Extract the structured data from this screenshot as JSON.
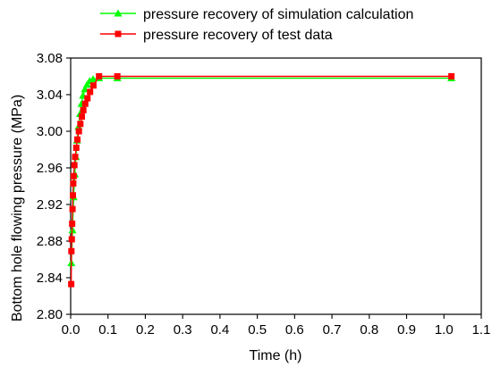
{
  "chart_data": {
    "type": "line",
    "xlabel": "Time (h)",
    "ylabel": "Bottom hole flowing pressure (MPa)",
    "xlim": [
      0.0,
      1.1
    ],
    "ylim": [
      2.8,
      3.08
    ],
    "xticks": [
      "0.0",
      "0.1",
      "0.2",
      "0.3",
      "0.4",
      "0.5",
      "0.6",
      "0.7",
      "0.8",
      "0.9",
      "1.0",
      "1.1"
    ],
    "yticks": [
      "2.80",
      "2.84",
      "2.88",
      "2.92",
      "2.96",
      "3.00",
      "3.04",
      "3.08"
    ],
    "grid": false,
    "legend_position": "top",
    "series": [
      {
        "name": "pressure recovery of simulation calculation",
        "color": "#00ff00",
        "marker": "triangle",
        "x": [
          0.002,
          0.005,
          0.008,
          0.011,
          0.014,
          0.017,
          0.021,
          0.025,
          0.029,
          0.033,
          0.038,
          0.044,
          0.051,
          0.06,
          0.076,
          0.125,
          1.02
        ],
        "y": [
          2.856,
          2.892,
          2.928,
          2.953,
          2.972,
          2.99,
          3.005,
          3.019,
          3.03,
          3.039,
          3.046,
          3.051,
          3.055,
          3.057,
          3.058,
          3.058,
          3.058
        ]
      },
      {
        "name": "pressure recovery of test data",
        "color": "#ff0000",
        "marker": "square",
        "x": [
          0.0015,
          0.002,
          0.003,
          0.004,
          0.005,
          0.006,
          0.007,
          0.008,
          0.01,
          0.012,
          0.015,
          0.018,
          0.022,
          0.026,
          0.03,
          0.034,
          0.039,
          0.045,
          0.052,
          0.061,
          0.076,
          0.125,
          1.02
        ],
        "y": [
          2.833,
          2.869,
          2.882,
          2.899,
          2.915,
          2.93,
          2.943,
          2.951,
          2.963,
          2.972,
          2.982,
          2.991,
          3.0,
          3.008,
          3.016,
          3.023,
          3.03,
          3.036,
          3.043,
          3.05,
          3.06,
          3.06,
          3.06
        ]
      }
    ]
  }
}
